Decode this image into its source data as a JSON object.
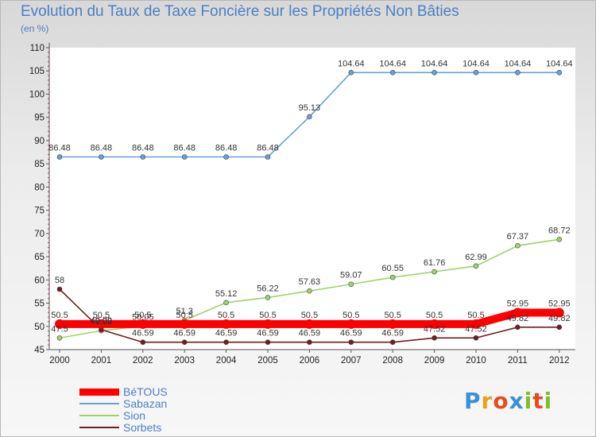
{
  "header": {
    "title": "Evolution du Taux de Taxe Foncière sur les Propriétés Non Bâties",
    "subtitle": "(en %)"
  },
  "logo": {
    "text": "Proxiti",
    "letters": [
      "P",
      "r",
      "o",
      "x",
      "i",
      "t",
      "i"
    ],
    "colors": [
      "#3a8fd8",
      "#e8a317",
      "#e84c1c",
      "#3a8fd8",
      "#7cbf2a",
      "#e84c1c",
      "#7cbf2a"
    ]
  },
  "chart_data": {
    "type": "line",
    "title": "Evolution du Taux de Taxe Foncière sur les Propriétés Non Bâties",
    "ylabel": "(en %)",
    "xlabel": "",
    "x": [
      "2000",
      "2001",
      "2002",
      "2003",
      "2004",
      "2005",
      "2006",
      "2007",
      "2008",
      "2009",
      "2010",
      "2011",
      "2012"
    ],
    "ylim": [
      45,
      110
    ],
    "yticks": [
      "45",
      "50",
      "55",
      "60",
      "65",
      "70",
      "75",
      "80",
      "85",
      "90",
      "95",
      "100",
      "105",
      "110"
    ],
    "grid": false,
    "legend_position": "bottom-left",
    "series": [
      {
        "name": "BéTOUS",
        "color": "#ff0000",
        "emphasis": "thick",
        "values": [
          50.5,
          50.5,
          50.5,
          50.5,
          50.5,
          50.5,
          50.5,
          50.5,
          50.5,
          50.5,
          50.5,
          52.95,
          52.95
        ],
        "labels": [
          "50.5",
          "50.5",
          "50.5",
          "50.5",
          "50.5",
          "50.5",
          "50.5",
          "50.5",
          "50.5",
          "50.5",
          "50.5",
          "52.95",
          "52.95"
        ]
      },
      {
        "name": "Sabazan",
        "color": "#6a9fd4",
        "values": [
          86.48,
          86.48,
          86.48,
          86.48,
          86.48,
          86.48,
          95.13,
          104.64,
          104.64,
          104.64,
          104.64,
          104.64,
          104.64
        ],
        "labels": [
          "86.48",
          "86.48",
          "86.48",
          "86.48",
          "86.48",
          "86.48",
          "95.13",
          "104.64",
          "104.64",
          "104.64",
          "104.64",
          "104.64",
          "104.64"
        ]
      },
      {
        "name": "Sion",
        "color": "#9ed36a",
        "values": [
          47.5,
          49.08,
          50.05,
          51.3,
          55.12,
          56.22,
          57.63,
          59.07,
          60.55,
          61.76,
          62.99,
          67.37,
          68.72
        ],
        "labels": [
          "47.5",
          "49.08",
          "50.05",
          "51.3",
          "55.12",
          "56.22",
          "57.63",
          "59.07",
          "60.55",
          "61.76",
          "62.99",
          "67.37",
          "68.72"
        ]
      },
      {
        "name": "Sorbets",
        "color": "#6e1e1e",
        "values": [
          58,
          49.29,
          46.59,
          46.59,
          46.59,
          46.59,
          46.59,
          46.59,
          46.59,
          47.52,
          47.52,
          49.82,
          49.82
        ],
        "labels": [
          "58",
          "49.29",
          "46.59",
          "46.59",
          "46.59",
          "46.59",
          "46.59",
          "46.59",
          "46.59",
          "47.52",
          "47.52",
          "49.82",
          "49.82"
        ]
      }
    ]
  }
}
